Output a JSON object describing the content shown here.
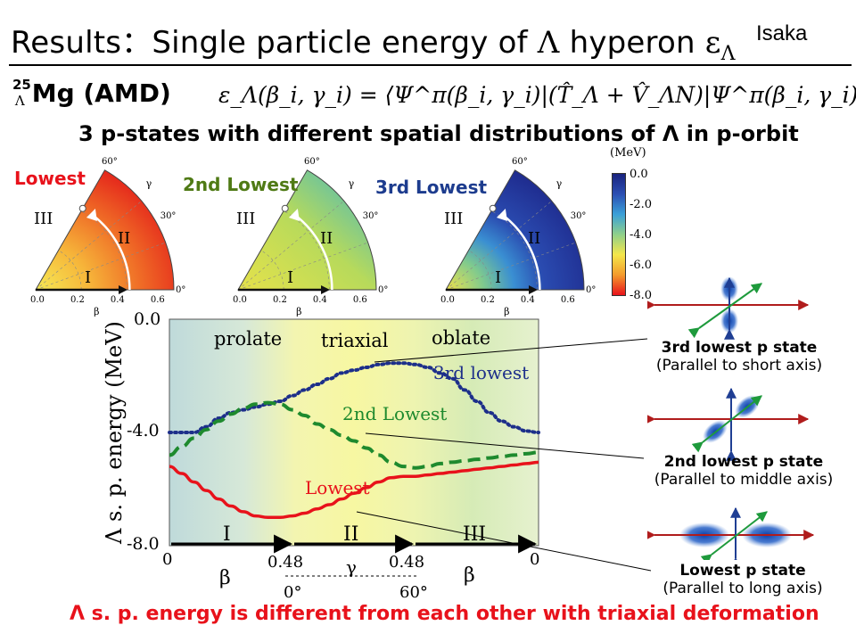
{
  "slide": {
    "title_prefix": "Results：Single particle energy of ",
    "title_lambda": "Λ",
    "title_mid": " hyperon ",
    "title_eps": "ε",
    "title_eps_sub": "Λ",
    "author": "Isaka",
    "nucleus_mass": "25",
    "nucleus_lambda": "Λ",
    "nucleus_rest": "Mg (AMD)",
    "formula": "ε_Λ(β_i, γ_i) = ⟨Ψ^π(β_i, γ_i)|(T̂_Λ + V̂_ΛN)|Ψ^π(β_i, γ_i)⟩",
    "subtitle": "3 p-states with different spatial distributions of Λ in p-orbit",
    "bottom_note": "Λ s. p. energy is different from each other with triaxial deformation"
  },
  "wedges": [
    {
      "label": "Lowest",
      "label_color": "#e8121b",
      "style": "lowest"
    },
    {
      "label": "2nd Lowest",
      "label_color": "#4f7a15",
      "style": "second"
    },
    {
      "label": "3rd Lowest",
      "label_color": "#1d3c8e",
      "style": "third"
    }
  ],
  "wedge_text": {
    "gamma_60": "60°",
    "gamma_30": "30°",
    "gamma": "γ",
    "gamma_0": "0°",
    "beta": "β",
    "tick_00": "0.0",
    "tick_02": "0.2",
    "tick_04": "0.4",
    "tick_06": "0.6",
    "region_I": "I",
    "region_II": "II",
    "region_III": "III"
  },
  "colorbar": {
    "unit": "(MeV)",
    "ticks": [
      "0.0",
      "-2.0",
      "-4.0",
      "-6.0",
      "-8.0"
    ],
    "colors": [
      "#1a237e",
      "#2b4fb3",
      "#3aa0d8",
      "#8fd08a",
      "#f4e64a",
      "#f49b2c",
      "#e8121b"
    ]
  },
  "chart_data": {
    "type": "line",
    "ylabel": "Λ s. p. energy (MeV)",
    "ylim": [
      -8.0,
      0.0
    ],
    "y_ticks": [
      "0.0",
      "-4.0",
      "-8.0"
    ],
    "x_path_labels": {
      "start": "0",
      "mid1": "0.48",
      "mid2": "0.48",
      "end": "0",
      "beta_left": "β",
      "gamma_mid": "γ",
      "beta_right": "β",
      "gamma_0": "0°",
      "gamma_60": "60°"
    },
    "regions": [
      "prolate",
      "triaxial",
      "oblate"
    ],
    "path_segments": [
      "I",
      "II",
      "III"
    ],
    "x": [
      0,
      0.1,
      0.2,
      0.3,
      0.4,
      0.5,
      0.6,
      0.7,
      0.8,
      0.9,
      1.0,
      1.1,
      1.2,
      1.3,
      1.4,
      1.5,
      1.6,
      1.7,
      1.8,
      1.9,
      2.0,
      2.1,
      2.2,
      2.3,
      2.4,
      2.5,
      2.6,
      2.7,
      2.8,
      2.9,
      3.0
    ],
    "series": [
      {
        "name": "3rd lowest",
        "color": "#1d2f8a",
        "style": "dotted",
        "values": [
          -4.0,
          -4.0,
          -4.0,
          -3.8,
          -3.5,
          -3.3,
          -3.2,
          -3.1,
          -3.0,
          -2.9,
          -2.7,
          -2.5,
          -2.3,
          -2.1,
          -1.9,
          -1.8,
          -1.7,
          -1.6,
          -1.55,
          -1.55,
          -1.6,
          -1.7,
          -1.9,
          -2.1,
          -2.5,
          -2.9,
          -3.3,
          -3.6,
          -3.8,
          -3.95,
          -4.0
        ]
      },
      {
        "name": "2nd Lowest",
        "color": "#1e8a2e",
        "style": "dashed",
        "values": [
          -4.8,
          -4.5,
          -4.2,
          -3.9,
          -3.6,
          -3.35,
          -3.15,
          -3.0,
          -2.95,
          -3.0,
          -3.2,
          -3.4,
          -3.7,
          -3.9,
          -4.1,
          -4.3,
          -4.55,
          -4.8,
          -5.05,
          -5.2,
          -5.25,
          -5.2,
          -5.1,
          -5.05,
          -5.0,
          -4.95,
          -4.9,
          -4.85,
          -4.8,
          -4.75,
          -4.7
        ]
      },
      {
        "name": "Lowest",
        "color": "#e8121b",
        "style": "solid",
        "values": [
          -5.2,
          -5.45,
          -5.75,
          -6.05,
          -6.35,
          -6.6,
          -6.8,
          -6.95,
          -7.0,
          -7.0,
          -6.95,
          -6.85,
          -6.7,
          -6.55,
          -6.35,
          -6.15,
          -5.95,
          -5.75,
          -5.6,
          -5.55,
          -5.55,
          -5.5,
          -5.45,
          -5.4,
          -5.35,
          -5.3,
          -5.25,
          -5.2,
          -5.15,
          -5.1,
          -5.05
        ]
      }
    ]
  },
  "callouts": [
    {
      "title": "3rd lowest p state",
      "desc": "(Parallel to short axis)"
    },
    {
      "title": "2nd lowest p state",
      "desc": "(Parallel to middle axis)"
    },
    {
      "title": "Lowest p state",
      "desc": "(Parallel to long axis)"
    }
  ]
}
